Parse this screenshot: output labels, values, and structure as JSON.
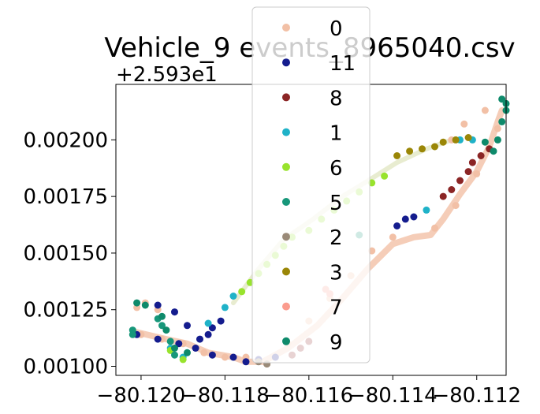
{
  "chart_data": {
    "type": "scatter",
    "title": "Vehicle_9 events_8965040.csv",
    "xlabel": "",
    "ylabel": "",
    "y_offset_label": "+2.593e1",
    "xlim": [
      -80.1206,
      -80.1113
    ],
    "ylim": [
      0.00096,
      0.002245
    ],
    "x_ticks": [
      -80.12,
      -80.118,
      -80.116,
      -80.114,
      -80.112
    ],
    "x_tick_labels": [
      "−80.120",
      "−80.118",
      "−80.116",
      "−80.114",
      "−80.112"
    ],
    "y_ticks": [
      0.001,
      0.00125,
      0.0015,
      0.00175,
      0.002
    ],
    "y_tick_labels": [
      "0.00100",
      "0.00125",
      "0.00150",
      "0.00175",
      "0.00200"
    ],
    "grid": false,
    "legend_position": "top-center",
    "legend": [
      {
        "label": "0",
        "color": "#f2c0a6"
      },
      {
        "label": "11",
        "color": "#141c8e"
      },
      {
        "label": "8",
        "color": "#8b2525"
      },
      {
        "label": "1",
        "color": "#1fb2c8"
      },
      {
        "label": "6",
        "color": "#98e32d"
      },
      {
        "label": "5",
        "color": "#17977a"
      },
      {
        "label": "2",
        "color": "#9a8a78"
      },
      {
        "label": "3",
        "color": "#9a8607"
      },
      {
        "label": "7",
        "color": "#fb9c8e"
      },
      {
        "label": "9",
        "color": "#0e8a6b"
      }
    ],
    "series": [
      {
        "color": "#f2c0a6",
        "points": [
          [
            -80.12,
            0.00114
          ],
          [
            -80.1195,
            0.00112
          ],
          [
            -80.119,
            0.0011
          ],
          [
            -80.1185,
            0.00106
          ],
          [
            -80.118,
            0.00104
          ],
          [
            -80.1175,
            0.00104
          ],
          [
            -80.117,
            0.00101
          ],
          [
            -80.1165,
            0.0011
          ],
          [
            -80.116,
            0.0012
          ],
          [
            -80.1155,
            0.0013
          ],
          [
            -80.115,
            0.0014
          ],
          [
            -80.1145,
            0.00151
          ],
          [
            -80.114,
            0.00157
          ],
          [
            -80.113,
            0.00161
          ],
          [
            -80.1125,
            0.00171
          ],
          [
            -80.112,
            0.00185
          ],
          [
            -80.1115,
            0.00205
          ],
          [
            -80.1118,
            0.00213
          ],
          [
            -80.1123,
            0.00207
          ],
          [
            -80.1126,
            0.002
          ],
          [
            -80.1201,
            0.00126
          ],
          [
            -80.1199,
            0.00128
          ],
          [
            -80.1196,
            0.00125
          ]
        ]
      },
      {
        "color": "#141c8e",
        "points": [
          [
            -80.1201,
            0.00114
          ],
          [
            -80.1196,
            0.00112
          ],
          [
            -80.1191,
            0.0011
          ],
          [
            -80.1187,
            0.00108
          ],
          [
            -80.1183,
            0.00105
          ],
          [
            -80.1178,
            0.00104
          ],
          [
            -80.1175,
            0.00102
          ],
          [
            -80.1172,
            0.00103
          ],
          [
            -80.1168,
            0.00104
          ],
          [
            -80.1196,
            0.00127
          ],
          [
            -80.1192,
            0.00124
          ],
          [
            -80.1189,
            0.00118
          ],
          [
            -80.1186,
            0.00112
          ],
          [
            -80.1184,
            0.00114
          ],
          [
            -80.1183,
            0.00117
          ],
          [
            -80.1181,
            0.0012
          ],
          [
            -80.1139,
            0.00162
          ],
          [
            -80.1137,
            0.00165
          ],
          [
            -80.1135,
            0.00166
          ]
        ]
      },
      {
        "color": "#8b2525",
        "points": [
          [
            -80.1164,
            0.00105
          ],
          [
            -80.1162,
            0.00108
          ],
          [
            -80.116,
            0.00111
          ],
          [
            -80.1128,
            0.00175
          ],
          [
            -80.1126,
            0.00178
          ],
          [
            -80.1124,
            0.00182
          ],
          [
            -80.1122,
            0.00186
          ],
          [
            -80.1121,
            0.0019
          ],
          [
            -80.1119,
            0.00193
          ],
          [
            -80.1117,
            0.00196
          ]
        ]
      },
      {
        "color": "#1fb2c8",
        "points": [
          [
            -80.1193,
            0.00108
          ],
          [
            -80.119,
            0.00104
          ],
          [
            -80.1184,
            0.00119
          ],
          [
            -80.118,
            0.00126
          ],
          [
            -80.1178,
            0.00131
          ],
          [
            -80.1132,
            0.00169
          ],
          [
            -80.1124,
            0.002
          ],
          [
            -80.1121,
            0.002
          ]
        ]
      },
      {
        "color": "#98e32d",
        "points": [
          [
            -80.1193,
            0.00107
          ],
          [
            -80.119,
            0.00103
          ],
          [
            -80.1176,
            0.00133
          ],
          [
            -80.1174,
            0.00137
          ],
          [
            -80.1172,
            0.00141
          ],
          [
            -80.117,
            0.00145
          ],
          [
            -80.1168,
            0.00149
          ],
          [
            -80.1166,
            0.00153
          ],
          [
            -80.1164,
            0.00157
          ],
          [
            -80.116,
            0.0016
          ],
          [
            -80.1157,
            0.00165
          ],
          [
            -80.1154,
            0.00169
          ],
          [
            -80.1151,
            0.00173
          ],
          [
            -80.1148,
            0.00177
          ],
          [
            -80.1145,
            0.00181
          ],
          [
            -80.1142,
            0.00184
          ]
        ]
      },
      {
        "color": "#17977a",
        "points": [
          [
            -80.1202,
            0.00116
          ],
          [
            -80.1202,
            0.00114
          ],
          [
            -80.1196,
            0.00121
          ],
          [
            -80.1195,
            0.00118
          ],
          [
            -80.1193,
            0.00111
          ],
          [
            -80.1192,
            0.00105
          ],
          [
            -80.1148,
            0.00158
          ]
        ]
      },
      {
        "color": "#9a8a78",
        "points": [
          [
            -80.117,
            0.00101
          ],
          [
            -80.1172,
            0.00102
          ]
        ]
      },
      {
        "color": "#9a8607",
        "points": [
          [
            -80.1139,
            0.00193
          ],
          [
            -80.1136,
            0.00195
          ],
          [
            -80.1133,
            0.00196
          ],
          [
            -80.113,
            0.00197
          ],
          [
            -80.1128,
            0.00199
          ],
          [
            -80.1125,
            0.002
          ],
          [
            -80.1122,
            0.00201
          ]
        ]
      },
      {
        "color": "#fb9c8e",
        "points": [
          [
            -80.1156,
            0.00134
          ],
          [
            -80.1155,
            0.00132
          ]
        ]
      },
      {
        "color": "#0e8a6b",
        "points": [
          [
            -80.1118,
            0.00199
          ],
          [
            -80.1116,
            0.00195
          ],
          [
            -80.1115,
            0.002
          ],
          [
            -80.1114,
            0.00208
          ],
          [
            -80.1113,
            0.00216
          ],
          [
            -80.1114,
            0.00218
          ],
          [
            -80.1113,
            0.00213
          ],
          [
            -80.1201,
            0.00128
          ],
          [
            -80.1199,
            0.00127
          ],
          [
            -80.1195,
            0.00122
          ],
          [
            -80.1194,
            0.00116
          ],
          [
            -80.1192,
            0.00108
          ],
          [
            -80.1189,
            0.00106
          ]
        ]
      }
    ],
    "track": [
      [
        -80.1201,
        0.00115
      ],
      [
        -80.1194,
        0.00112
      ],
      [
        -80.1189,
        0.0011
      ],
      [
        -80.1184,
        0.00106
      ],
      [
        -80.1178,
        0.00104
      ],
      [
        -80.1175,
        0.00102
      ],
      [
        -80.1171,
        0.00102
      ],
      [
        -80.1165,
        0.00108
      ],
      [
        -80.1158,
        0.00118
      ],
      [
        -80.1152,
        0.0013
      ],
      [
        -80.1146,
        0.00143
      ],
      [
        -80.114,
        0.00154
      ],
      [
        -80.1135,
        0.00157
      ],
      [
        -80.1131,
        0.00158
      ],
      [
        -80.1128,
        0.00165
      ],
      [
        -80.1124,
        0.00176
      ],
      [
        -80.112,
        0.00186
      ],
      [
        -80.1117,
        0.00197
      ],
      [
        -80.1115,
        0.00208
      ],
      [
        -80.1114,
        0.00213
      ]
    ],
    "faint_track": [
      [
        -80.1178,
        0.00128
      ],
      [
        -80.1172,
        0.00143
      ],
      [
        -80.1166,
        0.00156
      ],
      [
        -80.1159,
        0.00165
      ],
      [
        -80.1152,
        0.00175
      ],
      [
        -80.1145,
        0.00183
      ],
      [
        -80.1139,
        0.0019
      ],
      [
        -80.1132,
        0.00196
      ],
      [
        -80.1126,
        0.002
      ]
    ]
  }
}
